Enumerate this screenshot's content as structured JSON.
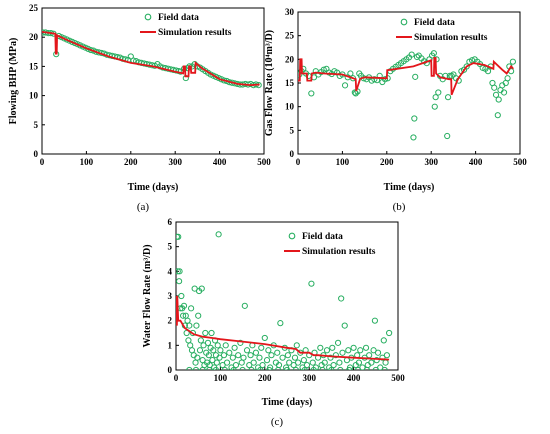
{
  "colors": {
    "field": "#27ae60",
    "sim": "#e3161b",
    "axis": "#000000"
  },
  "legend": {
    "field": "Field data",
    "sim": "Simulation results"
  },
  "chart_data": [
    {
      "id": "a",
      "panel_label": "(a)",
      "type": "scatter",
      "xlabel": "Time (days)",
      "ylabel": "Flowing BHP (MPa)",
      "xlim": [
        0,
        500
      ],
      "ylim": [
        0,
        25
      ],
      "xticks": [
        0,
        100,
        200,
        300,
        400,
        500
      ],
      "yticks": [
        0,
        5,
        10,
        15,
        20,
        25
      ],
      "series": [
        {
          "name": "Field data",
          "style": "markers",
          "x": [
            2,
            8,
            14,
            20,
            26,
            32,
            38,
            44,
            50,
            56,
            62,
            68,
            74,
            80,
            86,
            92,
            98,
            104,
            110,
            116,
            122,
            128,
            134,
            140,
            146,
            152,
            158,
            164,
            170,
            176,
            182,
            188,
            194,
            200,
            206,
            212,
            218,
            224,
            230,
            236,
            242,
            248,
            254,
            260,
            266,
            272,
            278,
            284,
            290,
            296,
            302,
            308,
            312,
            320,
            324,
            328,
            332,
            338,
            344,
            350,
            356,
            362,
            368,
            374,
            380,
            386,
            392,
            398,
            404,
            410,
            416,
            422,
            428,
            434,
            440,
            446,
            452,
            458,
            464,
            470,
            476,
            482,
            488
          ],
          "y": [
            20.8,
            20.8,
            20.7,
            20.7,
            20.6,
            17.1,
            20.2,
            20.0,
            19.8,
            19.6,
            19.4,
            19.2,
            19.0,
            18.8,
            18.6,
            18.4,
            18.2,
            18.0,
            17.8,
            17.7,
            17.5,
            17.4,
            17.3,
            17.2,
            17.0,
            16.9,
            16.8,
            16.7,
            16.6,
            16.5,
            16.3,
            16.2,
            16.1,
            16.7,
            16.0,
            15.9,
            15.7,
            15.6,
            15.5,
            15.4,
            15.3,
            15.2,
            15.1,
            15.4,
            15.0,
            14.8,
            14.7,
            14.6,
            14.5,
            14.4,
            14.3,
            14.2,
            14.1,
            14.6,
            13.0,
            14.7,
            15.0,
            15.0,
            15.4,
            15.0,
            14.8,
            14.5,
            14.2,
            13.9,
            13.6,
            13.4,
            13.2,
            13.0,
            12.8,
            12.6,
            12.5,
            12.3,
            12.2,
            12.1,
            12.0,
            11.9,
            11.9,
            12.0,
            11.9,
            12.0,
            11.8,
            11.9,
            11.8
          ]
        },
        {
          "name": "Simulation results",
          "style": "line",
          "x": [
            0,
            30,
            31,
            33,
            34,
            60,
            100,
            150,
            200,
            250,
            300,
            318,
            319,
            322,
            323,
            330,
            331,
            335,
            336,
            345,
            346,
            360,
            400,
            440,
            470,
            490
          ],
          "y": [
            20.9,
            20.6,
            17.2,
            17.2,
            20.3,
            19.4,
            18.1,
            16.7,
            15.6,
            15.0,
            14.1,
            13.8,
            15.0,
            15.0,
            13.3,
            13.3,
            15.0,
            15.0,
            13.9,
            13.9,
            15.6,
            14.7,
            12.8,
            12.0,
            11.8,
            11.9
          ]
        }
      ]
    },
    {
      "id": "b",
      "panel_label": "(b)",
      "type": "scatter",
      "xlabel": "Time (days)",
      "ylabel": "Gas Flow Rate (10⁴m³/D)",
      "xlim": [
        0,
        500
      ],
      "ylim": [
        0,
        30
      ],
      "xticks": [
        0,
        100,
        200,
        300,
        400,
        500
      ],
      "yticks": [
        0,
        5,
        10,
        15,
        20,
        25,
        30
      ],
      "series": [
        {
          "name": "Field data",
          "style": "markers",
          "x": [
            3,
            8,
            12,
            18,
            24,
            30,
            36,
            40,
            46,
            52,
            58,
            64,
            70,
            76,
            82,
            88,
            94,
            100,
            106,
            112,
            118,
            124,
            128,
            130,
            134,
            138,
            142,
            148,
            154,
            160,
            166,
            172,
            178,
            184,
            190,
            196,
            202,
            208,
            214,
            220,
            226,
            232,
            238,
            244,
            250,
            256,
            260,
            262,
            264,
            268,
            272,
            278,
            284,
            290,
            296,
            302,
            306,
            308,
            310,
            312,
            316,
            320,
            326,
            332,
            336,
            338,
            342,
            346,
            350,
            356,
            362,
            368,
            374,
            380,
            386,
            392,
            398,
            404,
            410,
            416,
            422,
            428,
            434,
            438,
            442,
            446,
            450,
            452,
            456,
            460,
            464,
            468,
            472,
            476,
            480,
            484
          ],
          "y": [
            16.8,
            17.5,
            18.0,
            17.0,
            16.5,
            12.8,
            16.2,
            17.5,
            16.8,
            17.3,
            17.8,
            18.0,
            17.2,
            16.9,
            17.5,
            17.2,
            16.5,
            16.8,
            14.5,
            16.2,
            17.0,
            16.0,
            13.0,
            12.8,
            13.2,
            17.0,
            16.5,
            16.0,
            15.8,
            16.2,
            15.5,
            15.8,
            15.6,
            16.5,
            15.2,
            15.8,
            16.0,
            17.5,
            18.0,
            18.4,
            18.8,
            19.2,
            19.6,
            20.0,
            20.4,
            21.0,
            3.5,
            7.5,
            16.3,
            20.5,
            20.8,
            20.2,
            19.6,
            19.2,
            20.0,
            20.8,
            21.3,
            10.0,
            12.0,
            20.0,
            13.0,
            16.5,
            15.8,
            16.5,
            3.8,
            12.0,
            16.5,
            16.5,
            16.8,
            16.0,
            15.5,
            17.5,
            17.8,
            18.5,
            19.5,
            19.8,
            20.0,
            19.5,
            19.0,
            18.2,
            18.0,
            17.5,
            18.5,
            15.0,
            14.0,
            12.5,
            8.2,
            11.5,
            13.5,
            14.5,
            13.0,
            15.0,
            16.0,
            18.5,
            17.5,
            19.5
          ]
        },
        {
          "name": "Simulation results",
          "style": "line",
          "x": [
            0,
            4,
            5,
            8,
            9,
            20,
            21,
            30,
            31,
            40,
            60,
            100,
            130,
            131,
            140,
            150,
            200,
            201,
            210,
            260,
            300,
            301,
            306,
            307,
            310,
            311,
            320,
            340,
            345,
            346,
            360,
            380,
            395,
            420,
            440,
            441,
            460,
            470,
            480,
            485
          ],
          "y": [
            15.5,
            15.5,
            20.0,
            20.0,
            17.0,
            17.0,
            15.5,
            15.5,
            17.0,
            17.2,
            17.0,
            16.8,
            15.8,
            13.3,
            15.9,
            16.2,
            16.0,
            17.7,
            17.8,
            18.5,
            19.8,
            16.5,
            16.5,
            20.3,
            20.3,
            17.0,
            16.2,
            15.8,
            15.8,
            12.5,
            15.8,
            18.5,
            19.2,
            18.8,
            18.0,
            19.5,
            17.8,
            17.0,
            18.5,
            18.0
          ]
        }
      ]
    },
    {
      "id": "c",
      "panel_label": "(c)",
      "type": "scatter",
      "xlabel": "Time (days)",
      "ylabel": "Water Flow Rate (m³/D)",
      "xlim": [
        0,
        500
      ],
      "ylim": [
        0,
        6
      ],
      "xticks": [
        0,
        100,
        200,
        300,
        400,
        500
      ],
      "yticks": [
        0,
        1,
        2,
        3,
        4,
        5,
        6
      ],
      "series": [
        {
          "name": "Field data",
          "style": "markers",
          "x": [
            2,
            4,
            5,
            7,
            8,
            10,
            12,
            14,
            16,
            18,
            20,
            22,
            24,
            26,
            28,
            30,
            32,
            34,
            36,
            38,
            40,
            42,
            44,
            46,
            48,
            50,
            52,
            54,
            56,
            58,
            60,
            62,
            64,
            66,
            68,
            70,
            72,
            74,
            76,
            78,
            80,
            82,
            84,
            86,
            88,
            90,
            92,
            94,
            96,
            98,
            100,
            105,
            108,
            112,
            115,
            120,
            125,
            128,
            132,
            135,
            140,
            145,
            148,
            152,
            155,
            160,
            165,
            168,
            172,
            175,
            180,
            185,
            188,
            192,
            195,
            200,
            205,
            208,
            212,
            215,
            220,
            225,
            228,
            232,
            235,
            240,
            245,
            248,
            252,
            255,
            260,
            265,
            268,
            272,
            275,
            280,
            285,
            288,
            292,
            295,
            300,
            305,
            308,
            312,
            315,
            320,
            325,
            328,
            332,
            335,
            340,
            345,
            348,
            352,
            355,
            360,
            365,
            368,
            372,
            375,
            380,
            385,
            388,
            392,
            395,
            400,
            405,
            408,
            412,
            415,
            420,
            425,
            428,
            432,
            435,
            440,
            445,
            448,
            452,
            455,
            460,
            465,
            468,
            472,
            475,
            480,
            30,
            45,
            60,
            75,
            90,
            110,
            130,
            150,
            170,
            190,
            210,
            230,
            250,
            270,
            290,
            310,
            330,
            350,
            370,
            390,
            410,
            430,
            450,
            470
          ],
          "y": [
            5.4,
            4.0,
            5.4,
            3.6,
            4.0,
            2.5,
            3.0,
            2.5,
            2.2,
            2.6,
            1.8,
            2.2,
            1.5,
            2.0,
            1.2,
            1.8,
            1.0,
            2.5,
            0.8,
            1.5,
            0.6,
            3.3,
            0.3,
            1.8,
            0.5,
            2.2,
            3.2,
            0.8,
            1.2,
            3.3,
            0.4,
            1.0,
            0.2,
            1.5,
            0.7,
            0.3,
            1.1,
            0.6,
            0.2,
            0.9,
            1.5,
            0.4,
            0.8,
            0.1,
            1.2,
            0.6,
            0.3,
            1.0,
            5.5,
            0.5,
            0.8,
            0.2,
            0.6,
            1.0,
            0.3,
            0.7,
            0.1,
            0.5,
            0.9,
            0.2,
            0.6,
            1.1,
            0.3,
            0.5,
            2.6,
            0.8,
            0.2,
            0.6,
            1.0,
            0.3,
            0.7,
            0.1,
            0.5,
            0.9,
            0.2,
            1.3,
            0.4,
            0.8,
            0.1,
            0.6,
            1.0,
            0.3,
            0.7,
            0.2,
            1.9,
            0.5,
            0.9,
            0.1,
            0.6,
            0.3,
            0.8,
            0.2,
            0.5,
            1.0,
            0.3,
            0.7,
            0.1,
            0.4,
            0.8,
            0.2,
            0.6,
            3.5,
            0.3,
            0.7,
            0.1,
            0.5,
            0.9,
            0.2,
            0.6,
            0.3,
            0.8,
            0.1,
            0.5,
            0.9,
            0.2,
            0.6,
            1.1,
            0.3,
            2.9,
            0.7,
            1.8,
            0.4,
            0.8,
            0.1,
            0.5,
            0.9,
            0.2,
            0.6,
            0.3,
            0.8,
            0.1,
            0.5,
            0.9,
            0.2,
            0.6,
            0.3,
            0.8,
            2.0,
            0.4,
            0.7,
            0.1,
            0.5,
            1.2,
            0.3,
            0.6,
            1.5,
            0.0,
            0.0,
            0.0,
            0.0,
            0.0,
            0.0,
            0.0,
            0.0,
            0.0,
            0.0,
            0.0,
            0.0,
            0.0,
            0.0,
            0.0,
            0.0,
            0.0,
            0.0,
            0.0,
            0.0,
            0.0,
            0.0,
            0.0,
            0.0
          ]
        },
        {
          "name": "Simulation results",
          "style": "line",
          "x": [
            0,
            2,
            3,
            5,
            10,
            20,
            40,
            60,
            80,
            100,
            150,
            200,
            250,
            270,
            280,
            300,
            310,
            320,
            350,
            400,
            450,
            480
          ],
          "y": [
            3.0,
            1.8,
            3.0,
            2.0,
            2.0,
            1.7,
            1.45,
            1.35,
            1.3,
            1.25,
            1.15,
            1.05,
            0.9,
            0.85,
            0.7,
            0.7,
            0.6,
            0.6,
            0.55,
            0.5,
            0.45,
            0.42
          ]
        }
      ]
    }
  ]
}
